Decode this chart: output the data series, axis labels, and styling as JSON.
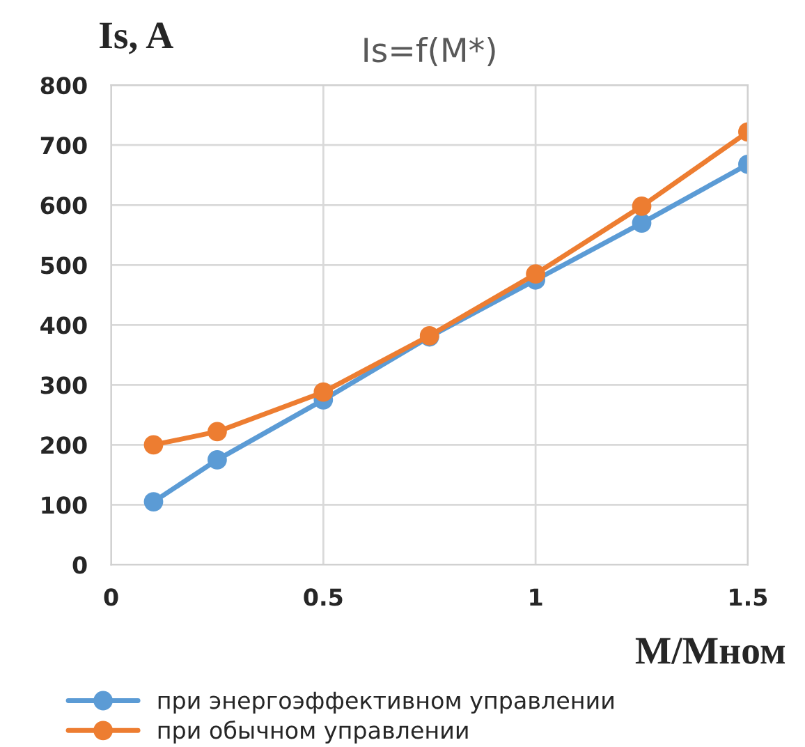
{
  "chart_data": {
    "type": "line",
    "title": "Is=f(M*)",
    "xlabel": "M/Mном",
    "ylabel": "Is, A",
    "x": [
      0.1,
      0.25,
      0.5,
      0.75,
      1,
      1.25,
      1.5
    ],
    "series": [
      {
        "name": "при энергоэффективном управлении",
        "color": "#5b9bd5",
        "values": [
          105,
          175,
          275,
          380,
          475,
          570,
          668
        ]
      },
      {
        "name": "при обычном управлении",
        "color": "#ed7d31",
        "values": [
          200,
          222,
          288,
          382,
          485,
          598,
          722
        ]
      }
    ],
    "xlim": [
      0,
      1.5
    ],
    "xticks": [
      0,
      0.5,
      1,
      1.5
    ],
    "ylim": [
      0,
      800
    ],
    "yticks": [
      0,
      100,
      200,
      300,
      400,
      500,
      600,
      700,
      800
    ],
    "grid": true,
    "legend": "bottom",
    "marker": "circle",
    "line_style": "solid"
  }
}
